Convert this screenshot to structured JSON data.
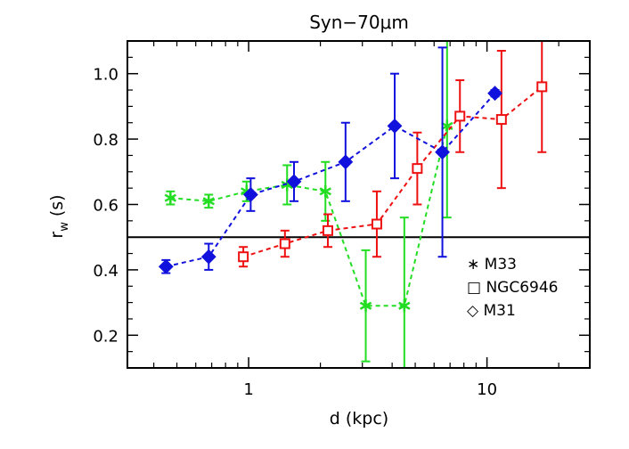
{
  "chart_data": {
    "type": "scatter",
    "title": "Syn−70μm",
    "xlabel": "d (kpc)",
    "ylabel": "r",
    "ylabel_sub": "w",
    "ylabel_suffix": "(s)",
    "xscale": "log",
    "xlim": [
      0.31,
      27
    ],
    "ylim": [
      0.1,
      1.1
    ],
    "x_ticks": [
      {
        "value": 1,
        "label": "1"
      },
      {
        "value": 10,
        "label": "10"
      }
    ],
    "y_ticks": [
      {
        "value": 0.2,
        "label": "0.2"
      },
      {
        "value": 0.4,
        "label": "0.4"
      },
      {
        "value": 0.6,
        "label": "0.6"
      },
      {
        "value": 0.8,
        "label": "0.8"
      },
      {
        "value": 1.0,
        "label": "1.0"
      }
    ],
    "reference_line": {
      "y": 0.5
    },
    "legend_position": "bottom-right",
    "series": [
      {
        "name": "M33",
        "legend_symbol": "∗",
        "marker": "asterisk",
        "color": "#22dd22",
        "x": [
          0.47,
          0.68,
          0.98,
          1.45,
          2.1,
          3.1,
          4.5,
          6.8
        ],
        "y": [
          0.62,
          0.61,
          0.64,
          0.66,
          0.64,
          0.29,
          0.29,
          0.84
        ],
        "err": [
          0.02,
          0.02,
          0.03,
          0.06,
          0.09,
          0.17,
          0.27,
          0.28
        ]
      },
      {
        "name": "NGC6946",
        "legend_symbol": "□",
        "marker": "square",
        "color": "#ee1111",
        "x": [
          0.95,
          1.42,
          2.15,
          3.45,
          5.1,
          7.7,
          11.5,
          17.0
        ],
        "y": [
          0.44,
          0.48,
          0.52,
          0.54,
          0.71,
          0.87,
          0.86,
          0.96
        ],
        "err": [
          0.03,
          0.04,
          0.05,
          0.1,
          0.11,
          0.11,
          0.21,
          0.2
        ]
      },
      {
        "name": "M31",
        "legend_symbol": "◇",
        "marker": "diamond",
        "color": "#1111dd",
        "x": [
          0.45,
          0.68,
          1.02,
          1.55,
          2.55,
          4.1,
          6.5,
          10.8
        ],
        "y": [
          0.41,
          0.44,
          0.63,
          0.67,
          0.73,
          0.84,
          0.76,
          0.94
        ],
        "err": [
          0.02,
          0.04,
          0.05,
          0.06,
          0.12,
          0.16,
          0.32,
          0.01
        ]
      }
    ]
  }
}
